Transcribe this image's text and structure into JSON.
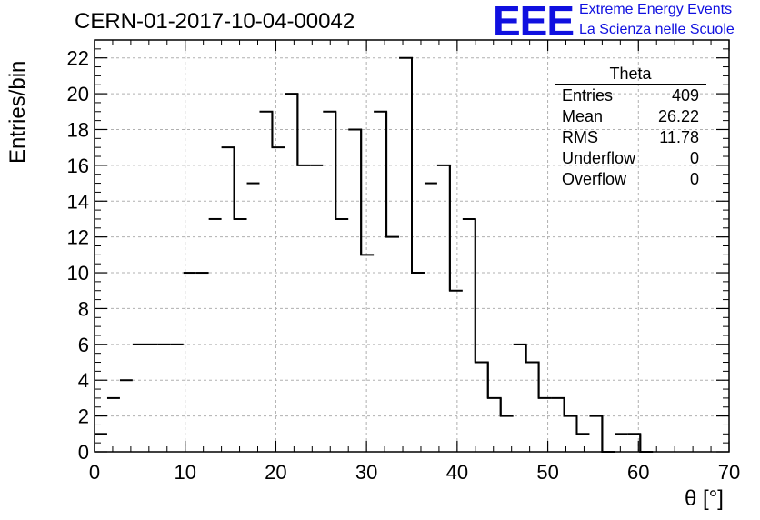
{
  "header": {
    "run_title": "CERN-01-2017-10-04-00042",
    "logo_text": "EEE",
    "logo_line1": "Extreme Energy Events",
    "logo_line2": "La Scienza nelle Scuole"
  },
  "stats_box": {
    "title": "Theta",
    "rows": [
      {
        "label": "Entries",
        "value": "409"
      },
      {
        "label": "Mean",
        "value": "26.22"
      },
      {
        "label": "RMS",
        "value": "11.78"
      },
      {
        "label": "Underflow",
        "value": "0"
      },
      {
        "label": "Overflow",
        "value": "0"
      }
    ]
  },
  "colors": {
    "logo": "#1010e0",
    "line": "#000000",
    "grid": "#b0b0b0"
  },
  "chart_data": {
    "type": "bar",
    "style": "step-histogram",
    "xlabel": "θ [°]",
    "ylabel": "Entries/bin",
    "xlim": [
      0,
      70
    ],
    "ylim": [
      0,
      23
    ],
    "grid": true,
    "x_ticks": [
      0,
      10,
      20,
      30,
      40,
      50,
      60,
      70
    ],
    "y_ticks": [
      0,
      2,
      4,
      6,
      8,
      10,
      12,
      14,
      16,
      18,
      20,
      22
    ],
    "bin_width": 1.4,
    "bin_start": 0,
    "values": [
      1,
      3,
      4,
      6,
      6,
      6,
      6,
      10,
      10,
      13,
      17,
      13,
      15,
      19,
      17,
      20,
      16,
      16,
      19,
      13,
      18,
      11,
      19,
      12,
      22,
      10,
      15,
      16,
      9,
      13,
      5,
      3,
      2,
      6,
      5,
      3,
      3,
      2,
      1,
      2,
      0,
      1,
      1,
      0,
      0,
      0,
      0,
      0,
      0,
      0
    ]
  }
}
